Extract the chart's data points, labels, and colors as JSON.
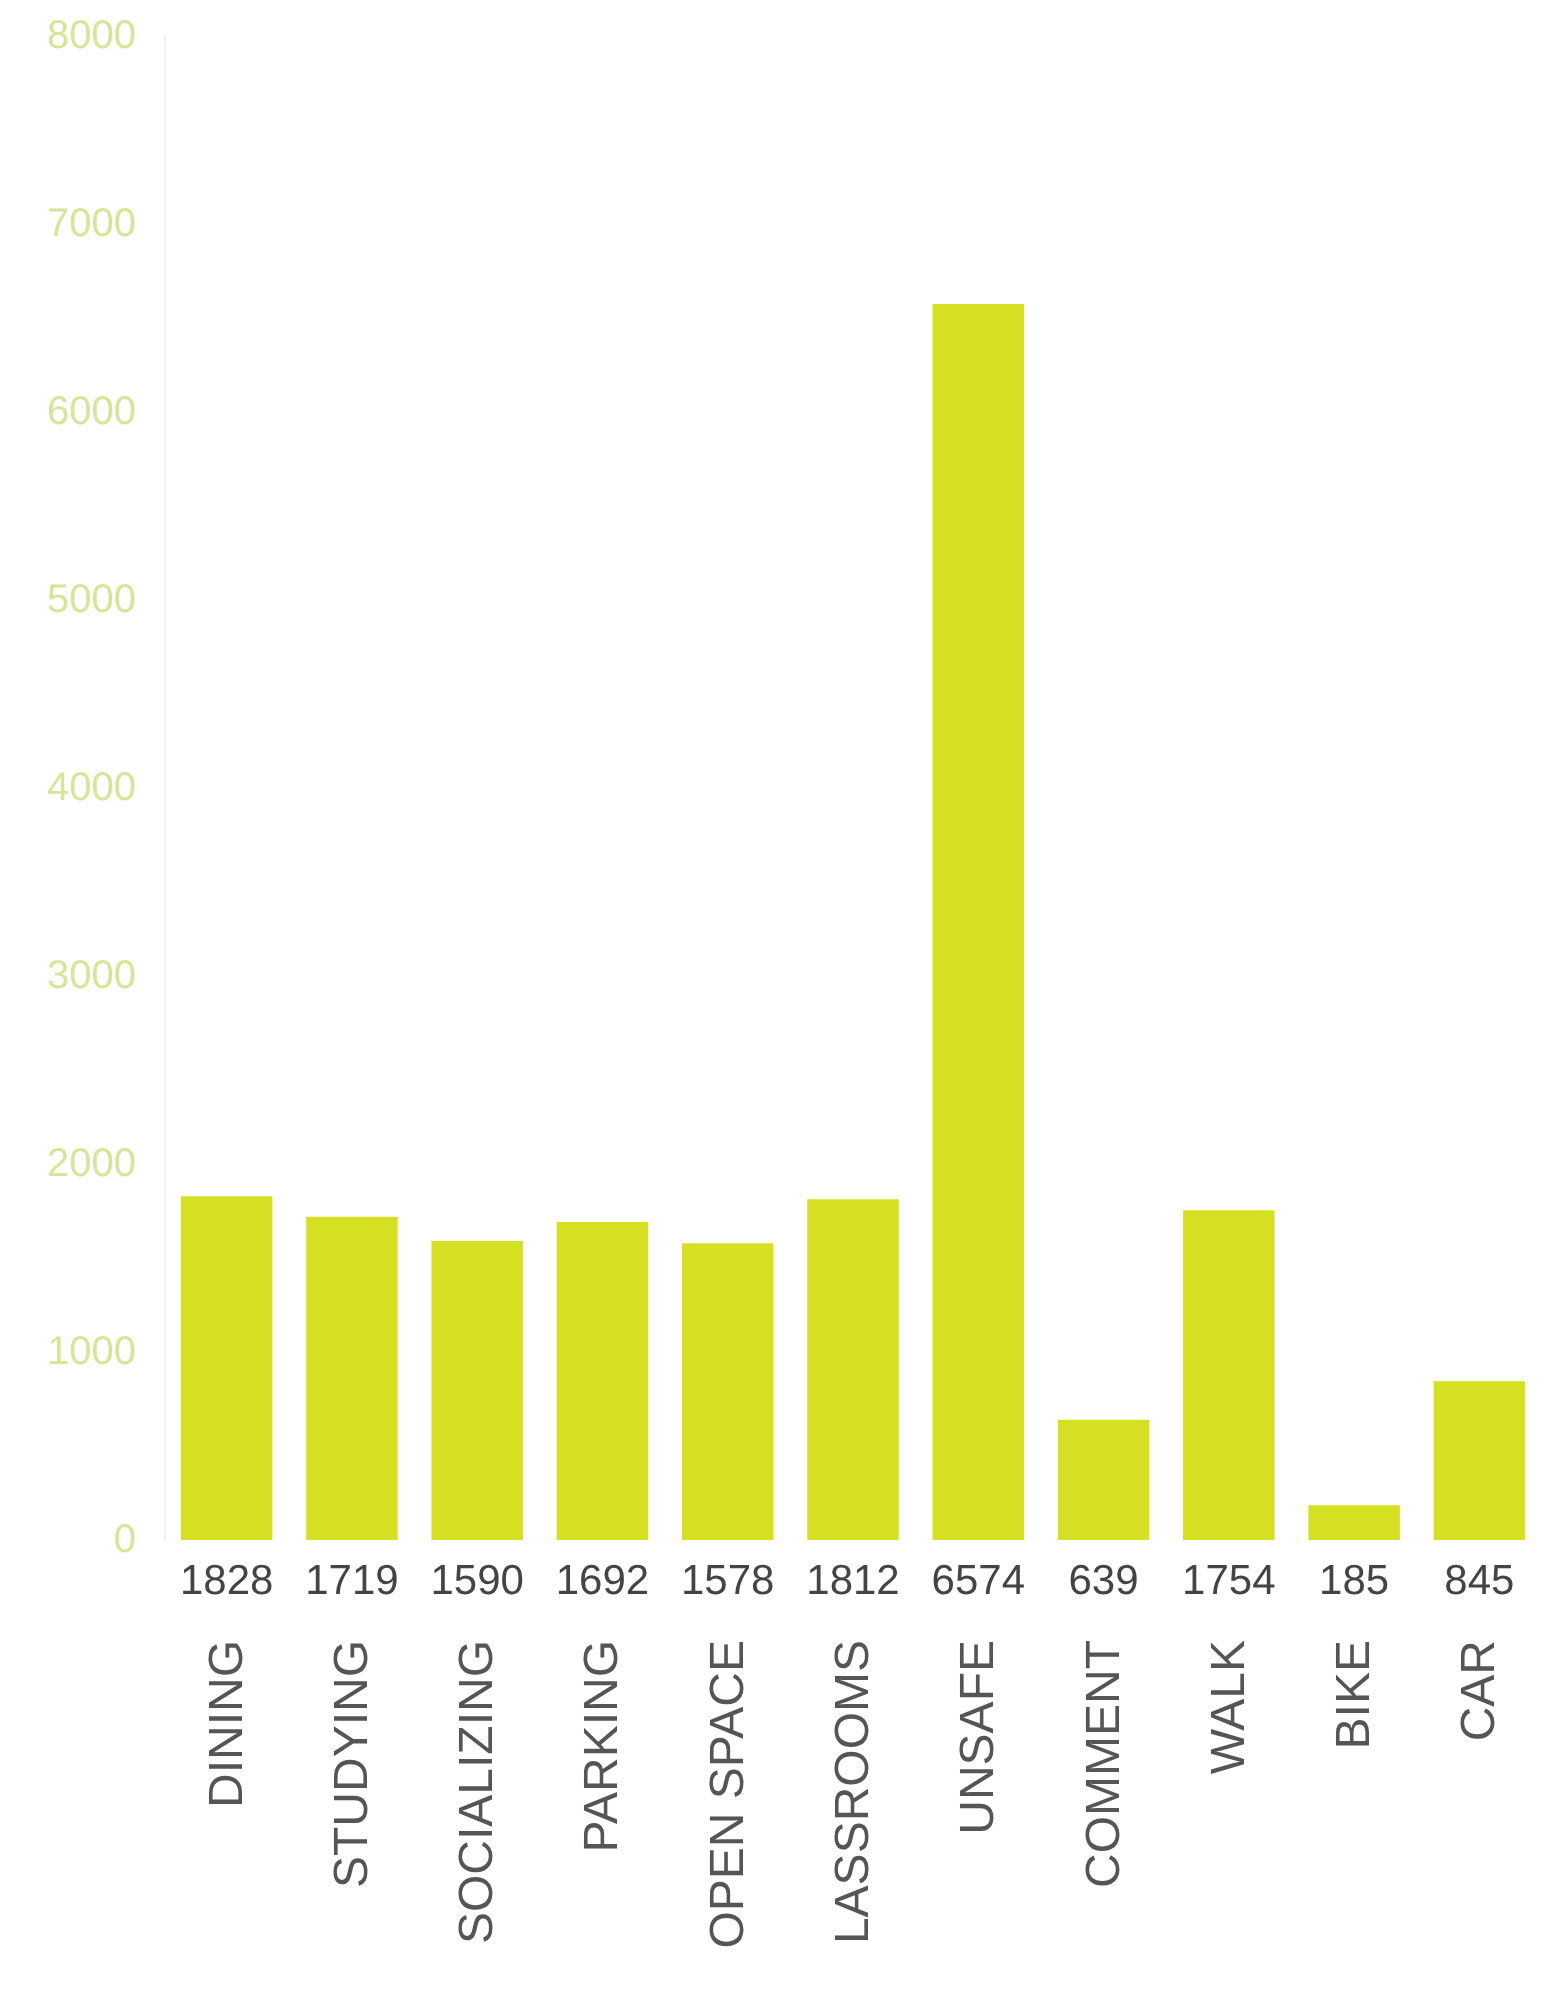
{
  "chart_data": {
    "type": "bar",
    "categories": [
      "DINING",
      "STUDYING",
      "SOCIALIZING",
      "PARKING",
      "OPEN SPACE",
      "LASSROOMS",
      "UNSAFE",
      "COMMENT",
      "WALK",
      "BIKE",
      "CAR"
    ],
    "values": [
      1828,
      1719,
      1590,
      1692,
      1578,
      1812,
      6574,
      639,
      1754,
      185,
      845
    ],
    "color": "#d4e021",
    "data_labels": true,
    "grid": false,
    "ylim": [
      0,
      8000
    ],
    "yticks": [
      0,
      1000,
      2000,
      3000,
      4000,
      5000,
      6000,
      7000,
      8000
    ]
  }
}
